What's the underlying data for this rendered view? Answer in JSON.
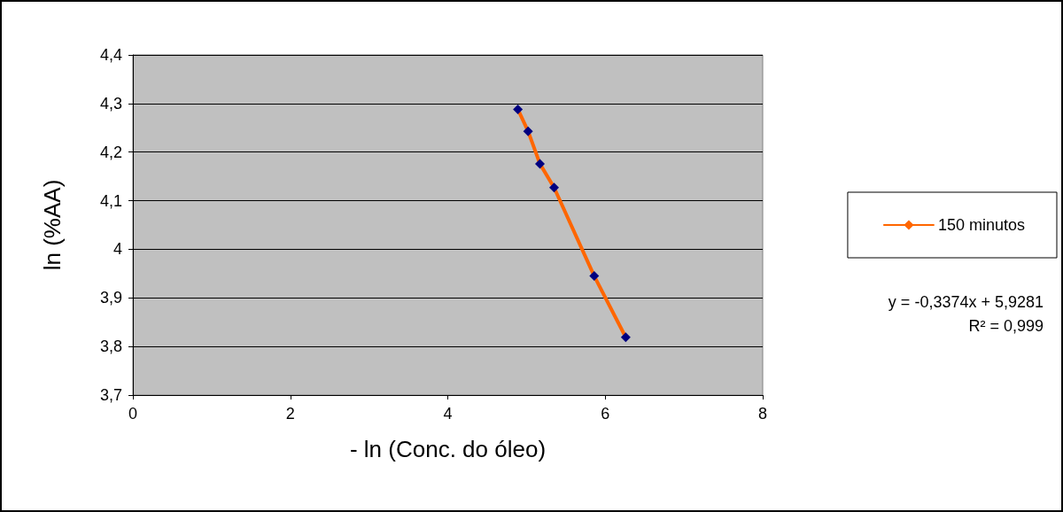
{
  "chart_data": {
    "type": "line",
    "xlabel": "- ln (Conc. do óleo)",
    "ylabel": "ln (%AA)",
    "series": [
      {
        "name": "150 minutos",
        "color": "#ff6600",
        "colors": [
          "#000080",
          "#000080",
          "#000080",
          "#000080",
          "#000080",
          "#000080"
        ],
        "x": [
          4.89,
          5.02,
          5.17,
          5.35,
          5.86,
          6.26
        ],
        "values": [
          4.288,
          4.243,
          4.176,
          4.127,
          3.945,
          3.819
        ]
      }
    ],
    "xlim": [
      0,
      8
    ],
    "xticks": [
      0,
      2,
      4,
      6,
      8
    ],
    "ylim": [
      3.7,
      4.4
    ],
    "yticks": [
      {
        "value": 3.7,
        "label": "3,7"
      },
      {
        "value": 3.8,
        "label": "3,8"
      },
      {
        "value": 3.9,
        "label": "3,9"
      },
      {
        "value": 4,
        "label": "4"
      },
      {
        "value": 4.1,
        "label": "4,1"
      },
      {
        "value": 4.2,
        "label": "4,2"
      },
      {
        "value": 4.3,
        "label": "4,3"
      },
      {
        "value": 4.4,
        "label": "4,4"
      }
    ],
    "grid": "y",
    "legend": "right",
    "marker": "diamond",
    "line_style": "solid",
    "annotations": [
      "y = -0,3374x + 5,9281",
      "R² = 0,999"
    ]
  }
}
